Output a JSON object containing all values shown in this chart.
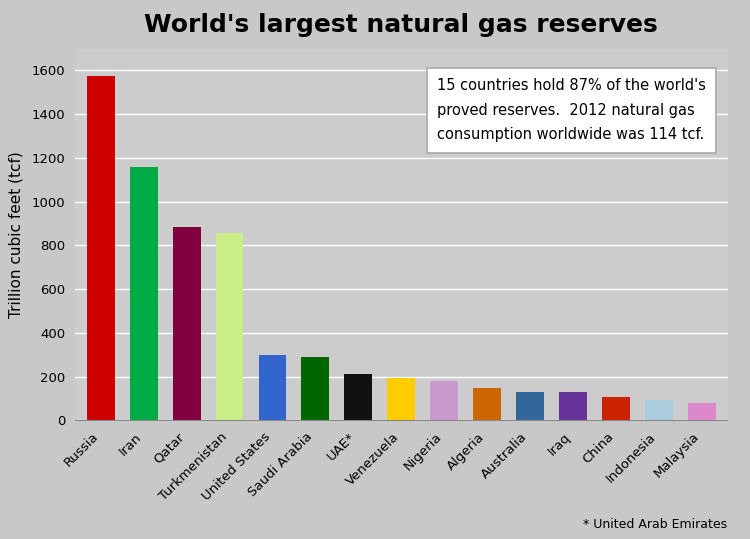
{
  "title": "World's largest natural gas reserves",
  "ylabel": "Trillion cubic feet (tcf)",
  "categories": [
    "Russia",
    "Iran",
    "Qatar",
    "Turkmenistan",
    "United States",
    "Saudi Arabia",
    "UAE*",
    "Venezuela",
    "Nigeria",
    "Algeria",
    "Australia",
    "Iraq",
    "China",
    "Indonesia",
    "Malaysia"
  ],
  "values": [
    1575,
    1160,
    885,
    855,
    300,
    290,
    210,
    195,
    180,
    150,
    130,
    130,
    105,
    95,
    80
  ],
  "colors": [
    "#cc0000",
    "#00aa44",
    "#800040",
    "#ccee88",
    "#3366cc",
    "#006600",
    "#111111",
    "#ffcc00",
    "#cc99cc",
    "#cc6600",
    "#336699",
    "#663399",
    "#cc2200",
    "#aaccdd",
    "#dd88cc"
  ],
  "background_color": "#c8c8c8",
  "plot_bg_color": "#cccccc",
  "ylim": [
    0,
    1700
  ],
  "yticks": [
    0,
    200,
    400,
    600,
    800,
    1000,
    1200,
    1400,
    1600
  ],
  "annotation_text": "15 countries hold 87% of the world's\nproved reserves.  2012 natural gas\nconsumption worldwide was 114 tcf.",
  "footnote": "* United Arab Emirates",
  "title_fontsize": 18,
  "ylabel_fontsize": 11,
  "tick_fontsize": 9.5
}
